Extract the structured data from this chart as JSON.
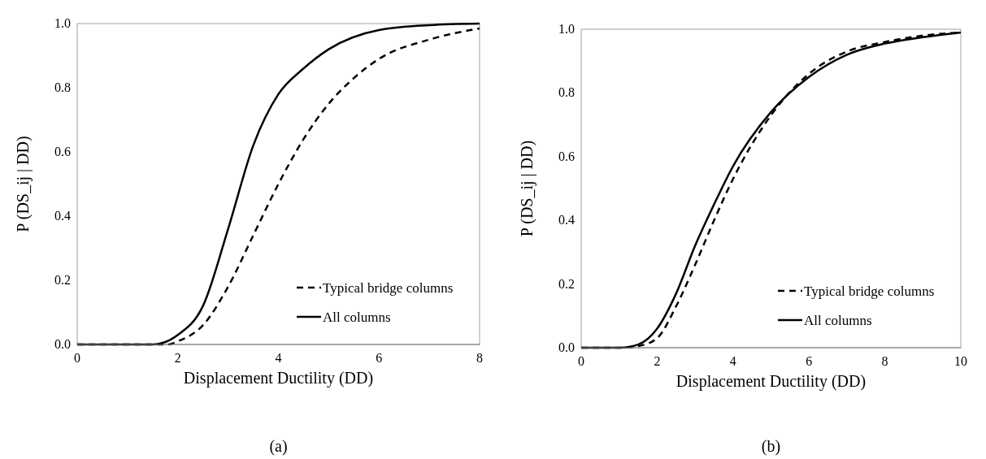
{
  "chart_data": [
    {
      "type": "line",
      "xlabel": "Displacement Ductility (DD)",
      "ylabel": "P (DS_ij | DD)",
      "annotations": [
        "(a)"
      ],
      "xlim": [
        0,
        8
      ],
      "ylim": [
        0,
        1
      ],
      "xticks": [
        0,
        2,
        4,
        6,
        8
      ],
      "yticks": [
        {
          "value": 0,
          "label": "0.0"
        },
        {
          "value": 0.2,
          "label": "0.2"
        },
        {
          "value": 0.4,
          "label": "0.4"
        },
        {
          "value": 0.6,
          "label": "0.6"
        },
        {
          "value": 0.8,
          "label": "0.8"
        },
        {
          "value": 1,
          "label": "1.0"
        }
      ],
      "legend": "bottom right",
      "grid": false,
      "marker": "none",
      "series": [
        {
          "name": "Typical bridge columns",
          "color": "#000000",
          "line_style": "dashed",
          "x": [
            0,
            1.5,
            1.8,
            2,
            2.5,
            3,
            3.5,
            4,
            4.5,
            5,
            5.5,
            6,
            7,
            8
          ],
          "values": [
            0,
            0,
            0,
            0.01,
            0.06,
            0.18,
            0.34,
            0.5,
            0.64,
            0.75,
            0.83,
            0.89,
            0.95,
            0.985
          ]
        },
        {
          "name": "All columns",
          "color": "#000000",
          "line_style": "solid",
          "x": [
            0,
            1.5,
            1.7,
            2,
            2.5,
            3,
            3.5,
            4,
            4.5,
            5,
            6,
            7,
            8
          ],
          "values": [
            0,
            0,
            0.005,
            0.03,
            0.12,
            0.36,
            0.62,
            0.78,
            0.86,
            0.92,
            0.98,
            0.995,
            1
          ]
        }
      ]
    },
    {
      "type": "line",
      "xlabel": "Displacement Ductility (DD)",
      "ylabel": "P (DS_ij | DD)",
      "annotations": [
        "(b)"
      ],
      "xlim": [
        0,
        10
      ],
      "ylim": [
        0,
        1
      ],
      "xticks": [
        0,
        2,
        4,
        6,
        8,
        10
      ],
      "yticks": [
        {
          "value": 0,
          "label": "0.0"
        },
        {
          "value": 0.2,
          "label": "0.2"
        },
        {
          "value": 0.4,
          "label": "0.4"
        },
        {
          "value": 0.6,
          "label": "0.6"
        },
        {
          "value": 0.8,
          "label": "0.8"
        },
        {
          "value": 1,
          "label": "1.0"
        }
      ],
      "legend": "bottom right",
      "grid": false,
      "marker": "none",
      "series": [
        {
          "name": "Typical bridge columns",
          "color": "#000000",
          "line_style": "dashed",
          "x": [
            0,
            1,
            1.5,
            2,
            2.5,
            3,
            3.5,
            4,
            5,
            6,
            7,
            8,
            9,
            10
          ],
          "values": [
            0,
            0,
            0.005,
            0.03,
            0.13,
            0.26,
            0.4,
            0.53,
            0.73,
            0.86,
            0.93,
            0.96,
            0.98,
            0.99
          ]
        },
        {
          "name": "All columns",
          "color": "#000000",
          "line_style": "solid",
          "x": [
            0,
            1,
            1.5,
            2,
            2.5,
            3,
            3.5,
            4,
            5,
            6,
            7,
            8,
            9,
            10
          ],
          "values": [
            0,
            0,
            0.01,
            0.06,
            0.17,
            0.32,
            0.45,
            0.57,
            0.74,
            0.85,
            0.92,
            0.955,
            0.975,
            0.99
          ]
        }
      ]
    }
  ]
}
